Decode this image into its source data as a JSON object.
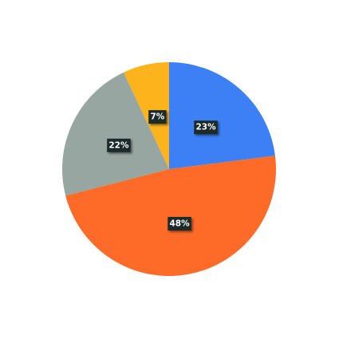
{
  "chart_data": {
    "type": "pie",
    "slices": [
      {
        "label": "23%",
        "value": 23,
        "color": "#3d80f5"
      },
      {
        "label": "48%",
        "value": 48,
        "color": "#fe6a27"
      },
      {
        "label": "22%",
        "value": 22,
        "color": "#98a6a2"
      },
      {
        "label": "7%",
        "value": 7,
        "color": "#fdb31c"
      }
    ],
    "legend": "none"
  }
}
